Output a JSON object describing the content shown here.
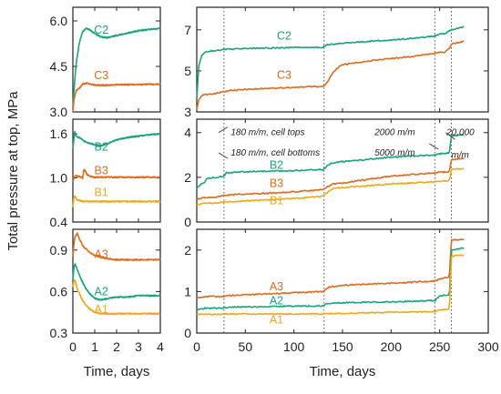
{
  "chart_data": {
    "type": "line",
    "ylabel": "Total pressure at top, MPa",
    "colors": {
      "C2": "#1aa37d",
      "C3": "#e06a1d",
      "B2": "#1aa37d",
      "B3": "#e06a1d",
      "B1": "#f0a81a",
      "A3": "#e06a1d",
      "A2": "#1aa37d",
      "A1": "#f0a81a"
    },
    "panels": [
      {
        "id": "top-left",
        "xlabel": "",
        "xlim": [
          0,
          4
        ],
        "ylim": [
          3.0,
          6.45
        ],
        "yticks": [
          3.0,
          4.5,
          6.0
        ],
        "ytick_labels": [
          "3.0",
          "4.5",
          "6.0"
        ],
        "series": [
          {
            "name": "C2",
            "label_at": [
              1.3,
              5.7
            ],
            "x": [
              0,
              0.05,
              0.15,
              0.3,
              0.45,
              0.6,
              0.8,
              1.0,
              1.3,
              1.6,
              2.0,
              2.5,
              3.0,
              3.5,
              4.0
            ],
            "y": [
              3.1,
              3.7,
              4.6,
              5.3,
              5.65,
              5.75,
              5.7,
              5.58,
              5.47,
              5.45,
              5.52,
              5.6,
              5.68,
              5.72,
              5.75
            ]
          },
          {
            "name": "C3",
            "label_at": [
              1.3,
              4.2
            ],
            "x": [
              0,
              0.05,
              0.15,
              0.3,
              0.45,
              0.6,
              0.8,
              1.0,
              1.5,
              2.0,
              2.5,
              3.0,
              3.5,
              4.0
            ],
            "y": [
              3.0,
              3.4,
              3.7,
              3.78,
              3.92,
              3.95,
              3.92,
              3.88,
              3.88,
              3.9,
              3.9,
              3.9,
              3.91,
              3.92
            ]
          }
        ]
      },
      {
        "id": "top-right",
        "xlabel": "",
        "xlim": [
          0,
          300
        ],
        "ylim": [
          3,
          8.1
        ],
        "yticks": [
          3,
          5,
          7
        ],
        "ytick_labels": [
          "3",
          "5",
          "7"
        ],
        "series": [
          {
            "name": "C2",
            "label_at": [
              90,
              6.7
            ],
            "x": [
              0,
              2,
              5,
              10,
              20,
              30,
              50,
              80,
              100,
              130,
              132,
              135,
              140,
              150,
              180,
              200,
              230,
              245,
              250,
              255,
              260,
              262,
              275
            ],
            "y": [
              3.6,
              5.2,
              5.75,
              5.95,
              6.0,
              6.05,
              6.08,
              6.12,
              6.15,
              6.15,
              6.22,
              6.28,
              6.3,
              6.35,
              6.45,
              6.5,
              6.62,
              6.7,
              6.8,
              6.8,
              6.95,
              7.0,
              7.15
            ]
          },
          {
            "name": "C3",
            "label_at": [
              90,
              4.8
            ],
            "x": [
              0,
              2,
              5,
              10,
              20,
              30,
              35,
              50,
              80,
              100,
              130,
              132,
              135,
              140,
              145,
              150,
              180,
              200,
              230,
              245,
              250,
              255,
              260,
              262,
              275
            ],
            "y": [
              3.1,
              3.6,
              3.8,
              3.85,
              3.9,
              4.0,
              4.05,
              4.1,
              4.15,
              4.2,
              4.25,
              4.3,
              4.5,
              4.9,
              5.15,
              5.3,
              5.5,
              5.6,
              5.75,
              5.85,
              5.9,
              5.9,
              6.1,
              6.3,
              6.45
            ]
          }
        ]
      },
      {
        "id": "middle-left",
        "xlabel": "",
        "xlim": [
          0,
          4
        ],
        "ylim": [
          0.4,
          1.8
        ],
        "yticks": [
          0.4,
          1.0,
          1.6
        ],
        "ytick_labels": [
          "0.4",
          "1.0",
          "1.6"
        ],
        "series": [
          {
            "name": "B2",
            "label_at": [
              1.3,
              1.42
            ],
            "x": [
              0,
              0.08,
              0.15,
              0.3,
              0.5,
              0.8,
              1.0,
              1.3,
              1.6,
              2.0,
              2.5,
              3.0,
              3.5,
              4.0
            ],
            "y": [
              1.4,
              1.64,
              1.57,
              1.55,
              1.5,
              1.47,
              1.45,
              1.44,
              1.47,
              1.52,
              1.55,
              1.57,
              1.59,
              1.6
            ]
          },
          {
            "name": "B3",
            "label_at": [
              1.3,
              1.1
            ],
            "x": [
              0,
              0.05,
              0.1,
              0.3,
              0.45,
              0.5,
              0.55,
              0.65,
              0.8,
              1.0,
              1.5,
              2.0,
              3.0,
              4.0
            ],
            "y": [
              0.95,
              1.0,
              1.03,
              1.02,
              1.0,
              1.12,
              1.1,
              1.05,
              1.02,
              1.01,
              1.01,
              1.01,
              1.01,
              1.01
            ]
          },
          {
            "name": "B1",
            "label_at": [
              1.3,
              0.8
            ],
            "x": [
              0,
              0.05,
              0.1,
              0.2,
              0.5,
              0.8,
              1.0,
              1.5,
              2.0,
              3.0,
              4.0
            ],
            "y": [
              0.6,
              0.74,
              0.75,
              0.7,
              0.68,
              0.68,
              0.68,
              0.68,
              0.68,
              0.68,
              0.68
            ]
          }
        ]
      },
      {
        "id": "middle-right",
        "xlabel": "",
        "xlim": [
          0,
          300
        ],
        "ylim": [
          0,
          4.6
        ],
        "yticks": [
          0,
          2,
          4
        ],
        "ytick_labels": [
          "0",
          "2",
          "4"
        ],
        "series": [
          {
            "name": "B2",
            "label_at": [
              82,
              2.55
            ],
            "x": [
              0,
              3,
              8,
              10,
              20,
              28,
              30,
              50,
              80,
              100,
              130,
              132,
              135,
              140,
              150,
              200,
              245,
              250,
              260,
              262,
              275
            ],
            "y": [
              1.5,
              1.65,
              1.75,
              1.95,
              2.0,
              2.05,
              2.2,
              2.25,
              2.28,
              2.3,
              2.35,
              2.4,
              2.55,
              2.65,
              2.7,
              2.9,
              3.0,
              3.05,
              3.1,
              3.85,
              3.9
            ]
          },
          {
            "name": "B3",
            "label_at": [
              82,
              1.72
            ],
            "x": [
              0,
              3,
              8,
              20,
              30,
              50,
              80,
              100,
              130,
              135,
              140,
              150,
              200,
              245,
              250,
              260,
              262,
              275
            ],
            "y": [
              1.0,
              1.05,
              1.1,
              1.12,
              1.2,
              1.25,
              1.3,
              1.35,
              1.45,
              1.6,
              1.7,
              1.75,
              2.05,
              2.2,
              2.22,
              2.25,
              2.8,
              2.85
            ]
          },
          {
            "name": "B1",
            "label_at": [
              82,
              0.95
            ],
            "x": [
              0,
              3,
              8,
              20,
              30,
              50,
              80,
              100,
              130,
              135,
              140,
              150,
              200,
              245,
              250,
              260,
              262,
              275
            ],
            "y": [
              0.75,
              0.8,
              0.85,
              0.85,
              0.9,
              0.95,
              1.0,
              1.05,
              1.15,
              1.35,
              1.5,
              1.55,
              1.7,
              1.8,
              1.82,
              1.85,
              2.35,
              2.4
            ]
          }
        ]
      },
      {
        "id": "bottom-left",
        "xlabel": "Time, days",
        "xlim": [
          0,
          4
        ],
        "ylim": [
          0.3,
          1.05
        ],
        "yticks": [
          0.3,
          0.6,
          0.9
        ],
        "ytick_labels": [
          "0.3",
          "0.6",
          "0.9"
        ],
        "xticks": [
          0,
          1,
          2,
          3,
          4
        ],
        "xtick_labels": [
          "0",
          "1",
          "2",
          "3",
          "4"
        ],
        "series": [
          {
            "name": "A3",
            "label_at": [
              1.3,
              0.87
            ],
            "x": [
              0,
              0.05,
              0.1,
              0.2,
              0.3,
              0.5,
              0.8,
              1.0,
              1.5,
              2.0,
              2.5,
              3.0,
              3.5,
              4.0
            ],
            "y": [
              0.85,
              0.95,
              1.0,
              1.02,
              0.98,
              0.92,
              0.88,
              0.86,
              0.84,
              0.83,
              0.83,
              0.83,
              0.83,
              0.83
            ]
          },
          {
            "name": "A2",
            "label_at": [
              1.3,
              0.6
            ],
            "x": [
              0,
              0.05,
              0.1,
              0.2,
              0.4,
              0.6,
              0.8,
              1.0,
              1.3,
              1.6,
              2.0,
              2.5,
              3.0,
              3.5,
              4.0
            ],
            "y": [
              0.68,
              0.78,
              0.8,
              0.76,
              0.68,
              0.62,
              0.58,
              0.55,
              0.54,
              0.55,
              0.56,
              0.56,
              0.57,
              0.57,
              0.57
            ]
          },
          {
            "name": "A1",
            "label_at": [
              1.3,
              0.47
            ],
            "x": [
              0,
              0.05,
              0.1,
              0.2,
              0.4,
              0.6,
              0.8,
              1.0,
              1.3,
              1.6,
              2.0,
              3.0,
              4.0
            ],
            "y": [
              0.63,
              0.68,
              0.68,
              0.62,
              0.55,
              0.5,
              0.47,
              0.45,
              0.44,
              0.44,
              0.44,
              0.44,
              0.44
            ]
          }
        ]
      },
      {
        "id": "bottom-right",
        "xlabel": "Time, days",
        "xlim": [
          0,
          300
        ],
        "ylim": [
          0,
          2.5
        ],
        "yticks": [
          0,
          1,
          2
        ],
        "ytick_labels": [
          "0",
          "1",
          "2"
        ],
        "xticks": [
          0,
          50,
          100,
          150,
          200,
          250,
          300
        ],
        "xtick_labels": [
          "0",
          "50",
          "100",
          "150",
          "200",
          "250",
          "300"
        ],
        "series": [
          {
            "name": "A3",
            "label_at": [
              82,
              1.12
            ],
            "x": [
              0,
              3,
              8,
              28,
              30,
              50,
              80,
              100,
              130,
              132,
              135,
              150,
              200,
              245,
              250,
              260,
              262,
              275
            ],
            "y": [
              0.85,
              0.85,
              0.88,
              0.88,
              0.9,
              0.92,
              0.95,
              0.97,
              1.0,
              1.05,
              1.1,
              1.15,
              1.2,
              1.25,
              1.3,
              1.35,
              2.25,
              2.25
            ]
          },
          {
            "name": "A2",
            "label_at": [
              82,
              0.78
            ],
            "x": [
              0,
              3,
              8,
              28,
              30,
              50,
              80,
              100,
              130,
              132,
              135,
              150,
              200,
              245,
              250,
              260,
              262,
              275
            ],
            "y": [
              0.55,
              0.57,
              0.6,
              0.6,
              0.62,
              0.63,
              0.64,
              0.65,
              0.65,
              0.68,
              0.72,
              0.73,
              0.75,
              0.78,
              0.9,
              0.92,
              2.0,
              2.05
            ]
          },
          {
            "name": "A1",
            "label_at": [
              82,
              0.32
            ],
            "x": [
              0,
              3,
              8,
              28,
              30,
              50,
              80,
              100,
              130,
              132,
              135,
              150,
              200,
              245,
              250,
              260,
              262,
              275
            ],
            "y": [
              0.45,
              0.45,
              0.45,
              0.45,
              0.46,
              0.46,
              0.46,
              0.46,
              0.46,
              0.46,
              0.47,
              0.47,
              0.5,
              0.52,
              0.56,
              0.58,
              1.85,
              1.88
            ]
          }
        ]
      }
    ],
    "event_lines_days": [
      28,
      131,
      245,
      262
    ],
    "annotations": [
      {
        "text": "180 m/m, cell tops",
        "x": 35,
        "y": 4.0
      },
      {
        "text": "180 m/m, cell bottoms",
        "x": 35,
        "y": 3.1
      },
      {
        "text": "2000 m/m",
        "x": 183,
        "y": 4.0
      },
      {
        "text": "5000 m/m",
        "x": 183,
        "y": 3.1
      },
      {
        "text": "20,000",
        "x": 257,
        "y": 4.0
      },
      {
        "text": "m/m",
        "x": 262,
        "y": 3.0
      }
    ]
  }
}
